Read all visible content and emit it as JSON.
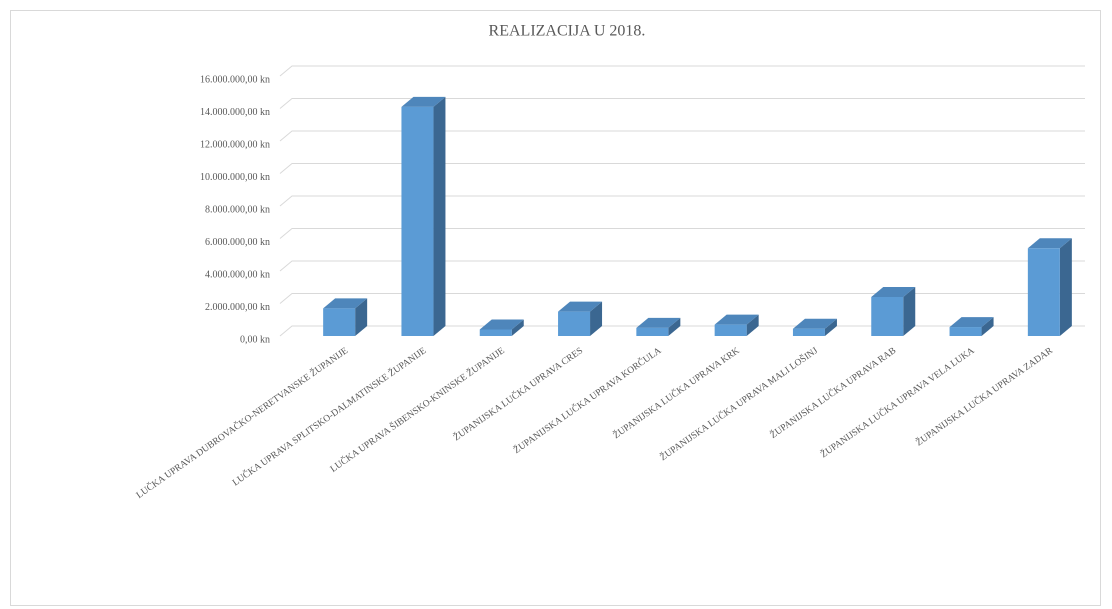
{
  "chart_data": {
    "type": "bar3d",
    "title": "REALIZACIJA U 2018.",
    "categories": [
      "LUČKA UPRAVA DUBROVAČKO-NERETVANSKE ŽUPANIJE",
      "LUČKA UPRAVA SPLITSKO-DALMATINSKE ŽUPANIJE",
      "LUČKA UPRAVA ŠIBENSKO-KNINSKE ŽUPANIJE",
      "ŽUPANIJSKA LUČKA UPRAVA CRES",
      "ŽUPANIJSKA LUČKA UPRAVA KORČULA",
      "ŽUPANIJSKA LUČKA UPRAVA KRK",
      "ŽUPANIJSKA LUČKA UPRAVA MALI LOŠINJ",
      "ŽUPANIJSKA LUČKA UPRAVA RAB",
      "ŽUPANIJSKA LUČKA UPRAVA VELA LUKA",
      "ŽUPANIJSKA LUČKA UPRAVA ZADAR"
    ],
    "values": [
      1700000,
      14100000,
      400000,
      1500000,
      500000,
      700000,
      450000,
      2400000,
      550000,
      5400000
    ],
    "color": "#5b9bd5",
    "ylim": [
      0,
      16000000
    ],
    "yticks": [
      {
        "value": 0,
        "label": "0,00 kn"
      },
      {
        "value": 2000000,
        "label": "2.000.000,00 kn"
      },
      {
        "value": 4000000,
        "label": "4.000.000,00 kn"
      },
      {
        "value": 6000000,
        "label": "6.000.000,00 kn"
      },
      {
        "value": 8000000,
        "label": "8.000.000,00 kn"
      },
      {
        "value": 10000000,
        "label": "10.000.000,00 kn"
      },
      {
        "value": 12000000,
        "label": "12.000.000,00 kn"
      },
      {
        "value": 14000000,
        "label": "14.000.000,00 kn"
      },
      {
        "value": 16000000,
        "label": "16.000.000,00 kn"
      }
    ],
    "grid": true
  }
}
